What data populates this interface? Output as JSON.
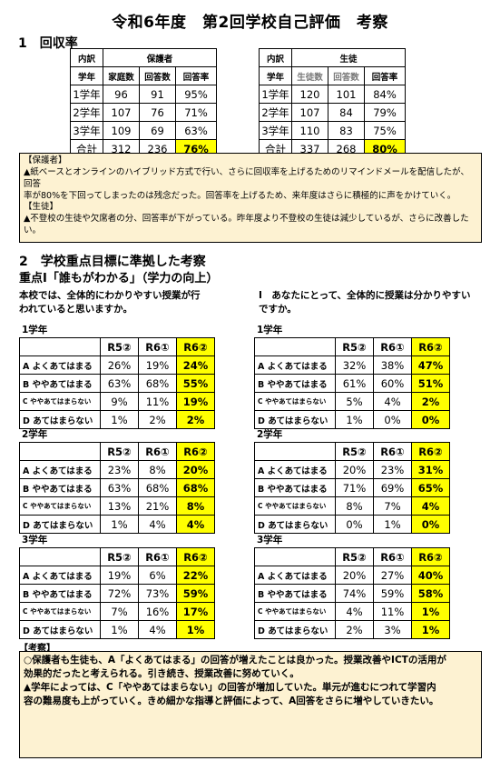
{
  "title": "令和6年度　第2回学校自己評価　考察",
  "sec1": {
    "heading": "1　回収率",
    "parents": {
      "h_kubun": "内訳",
      "h_group": "保護者",
      "cols": [
        "学年",
        "家庭数",
        "回答数",
        "回答率"
      ],
      "rows": [
        [
          "1学年",
          "96",
          "91",
          "95%"
        ],
        [
          "2学年",
          "107",
          "76",
          "71%"
        ],
        [
          "3学年",
          "109",
          "69",
          "63%"
        ],
        [
          "合計",
          "312",
          "236",
          "76%"
        ]
      ]
    },
    "students": {
      "h_kubun": "内訳",
      "h_group": "生徒",
      "cols": [
        "学年",
        "生徒数",
        "回答数",
        "回答率"
      ],
      "rows": [
        [
          "1学年",
          "120",
          "101",
          "84%"
        ],
        [
          "2学年",
          "107",
          "84",
          "79%"
        ],
        [
          "3学年",
          "110",
          "83",
          "75%"
        ],
        [
          "合計",
          "337",
          "268",
          "80%"
        ]
      ]
    },
    "comment": {
      "l1": "【保護者】",
      "t1a": "▲紙ベースとオンラインのハイブリッド方式で行い、さらに回収率を上げるためのリマインドメールを配信したが、回答",
      "t1b": "率が80%を下回ってしまったのは残念だった。回答率を上げるため、来年度はさらに積極的に声をかけていく。",
      "l2": "【生徒】",
      "t2a": "▲不登校の生徒や欠席者の分、回答率が下がっている。昨年度より不登校の生徒は減少しているが、さらに改善した",
      "t2b": "い。"
    }
  },
  "sec2": {
    "heading": "2　学校重点目標に準拠した考察",
    "subheading": "重点Ⅰ「誰もがわかる」（学力の向上）",
    "q_left_1": "本校では、全体的にわかりやすい授業が行",
    "q_left_2": "われていると思いますか。",
    "q_right_1": "Ⅰ　あなたにとって、全体的に授業は分かりやすい",
    "q_right_2": "ですか。",
    "col_headers": [
      "R5②",
      "R6①",
      "R6②"
    ],
    "row_labels": [
      "A よくあてはまる",
      "B ややあてはまる",
      "C ややあてはまらない",
      "D あてはまらない"
    ],
    "left": [
      {
        "grade": "1学年",
        "rows": [
          [
            "26%",
            "19%",
            "24%"
          ],
          [
            "63%",
            "68%",
            "55%"
          ],
          [
            "9%",
            "11%",
            "19%"
          ],
          [
            "1%",
            "2%",
            "2%"
          ]
        ]
      },
      {
        "grade": "2学年",
        "rows": [
          [
            "23%",
            "8%",
            "20%"
          ],
          [
            "63%",
            "68%",
            "68%"
          ],
          [
            "13%",
            "21%",
            "8%"
          ],
          [
            "1%",
            "4%",
            "4%"
          ]
        ]
      },
      {
        "grade": "3学年",
        "rows": [
          [
            "19%",
            "6%",
            "22%"
          ],
          [
            "72%",
            "73%",
            "59%"
          ],
          [
            "7%",
            "16%",
            "17%"
          ],
          [
            "1%",
            "4%",
            "1%"
          ]
        ]
      }
    ],
    "right": [
      {
        "grade": "1学年",
        "rows": [
          [
            "32%",
            "38%",
            "47%"
          ],
          [
            "61%",
            "60%",
            "51%"
          ],
          [
            "5%",
            "4%",
            "2%"
          ],
          [
            "1%",
            "0%",
            "0%"
          ]
        ]
      },
      {
        "grade": "2学年",
        "rows": [
          [
            "20%",
            "23%",
            "31%"
          ],
          [
            "71%",
            "69%",
            "65%"
          ],
          [
            "8%",
            "7%",
            "4%"
          ],
          [
            "0%",
            "1%",
            "0%"
          ]
        ]
      },
      {
        "grade": "3学年",
        "rows": [
          [
            "20%",
            "27%",
            "40%"
          ],
          [
            "74%",
            "59%",
            "58%"
          ],
          [
            "4%",
            "11%",
            "1%"
          ],
          [
            "2%",
            "3%",
            "1%"
          ]
        ]
      }
    ],
    "comment": {
      "label": "【考察】",
      "p1a": "○保護者も生徒も、A「よくあてはまる」の回答が増えたことは良かった。授業改善やICTの活用が",
      "p1b": "効果的だったと考えられる。引き続き、授業改善に努めていく。",
      "p2a": "▲学年によっては、C「ややあてはまらない」の回答が増加していた。単元が進むにつれて学習内",
      "p2b": "容の難易度も上がっていく。きめ細かな指導と評価によって、A回答をさらに増やしていきたい。"
    }
  }
}
